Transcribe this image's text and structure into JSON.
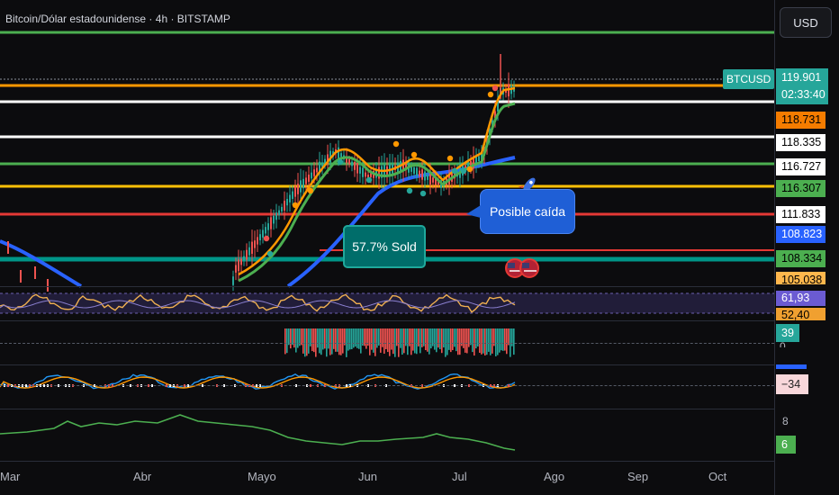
{
  "header": {
    "title": "Bitcoin/Dólar estadounidense · 4h · BITSTAMP"
  },
  "currency_button": {
    "label": "USD"
  },
  "symbol_tag": {
    "label": "BTCUSD"
  },
  "last_price": {
    "value": "119.901",
    "countdown": "02:33:40",
    "color": "#26a69a"
  },
  "price_levels": [
    {
      "value": "118.731",
      "color": "#f57c00",
      "text_color": "#000000"
    },
    {
      "value": "118.335",
      "color": "#ffffff",
      "text_color": "#000000"
    },
    {
      "value": "116.727",
      "color": "#ffffff",
      "text_color": "#000000"
    },
    {
      "value": "116.307",
      "color": "#4caf50",
      "text_color": "#000000"
    },
    {
      "value": "111.833",
      "color": "#ffffff",
      "text_color": "#000000"
    },
    {
      "value": "108.823",
      "color": "#2962ff",
      "text_color": "#ffffff"
    },
    {
      "value": "108.334",
      "color": "#4caf50",
      "text_color": "#000000"
    },
    {
      "value": "105.038",
      "color": "#ffb74d",
      "text_color": "#000000"
    }
  ],
  "annotations": {
    "sold_callout": "57.7% Sold",
    "drop_callout": "Posible caída"
  },
  "indicators": {
    "rsi_value": "61,93",
    "rsi_partial": "52,40",
    "volume_value": "39",
    "volume_partial": "0",
    "macd_value": "−34",
    "osc_value": "8",
    "osc_value2": "6"
  },
  "x_axis": [
    "Mar",
    "Abr",
    "Mayo",
    "Jun",
    "Jul",
    "Ago",
    "Sep",
    "Oct"
  ],
  "colors": {
    "up": "#26a69a",
    "down": "#ef5350",
    "ema_fast": "#ff9800",
    "ema_mid": "#4caf50",
    "ema_slow": "#2962ff",
    "rsi": "#f0b050",
    "rsi_band": "#4a3f8a"
  }
}
